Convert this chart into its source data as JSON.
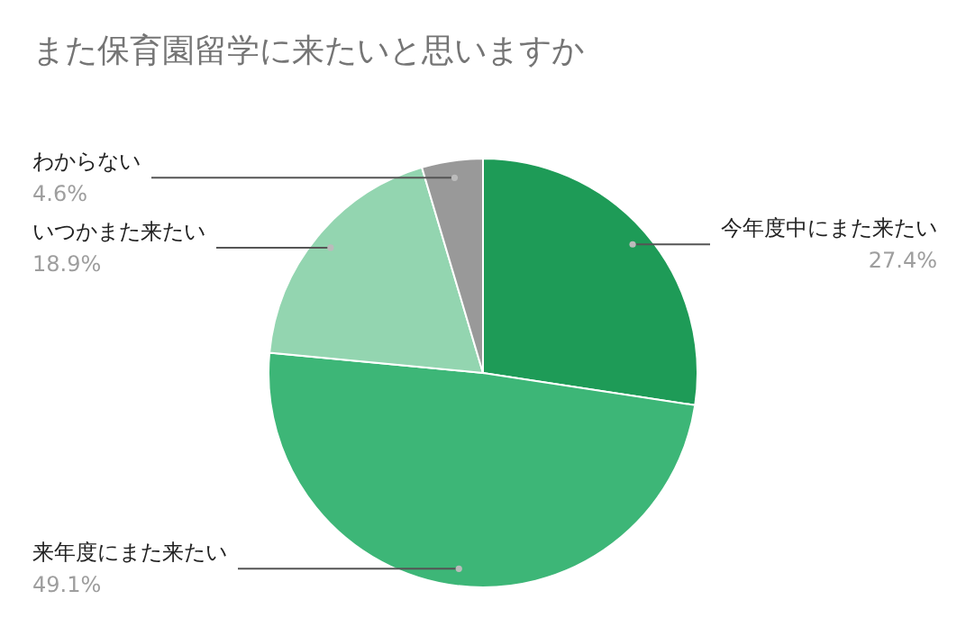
{
  "chart_data": {
    "type": "pie",
    "title": "また保育園留学に来たいと思いますか",
    "categories": [
      "今年度中にまた来たい",
      "来年度にまた来たい",
      "いつかまた来たい",
      "わからない"
    ],
    "values": [
      27.4,
      49.1,
      18.9,
      4.6
    ],
    "colors": [
      "#1e9b57",
      "#3db677",
      "#93d5b0",
      "#999999"
    ],
    "value_labels": [
      "27.4%",
      "49.1%",
      "18.9%",
      "4.6%"
    ]
  }
}
